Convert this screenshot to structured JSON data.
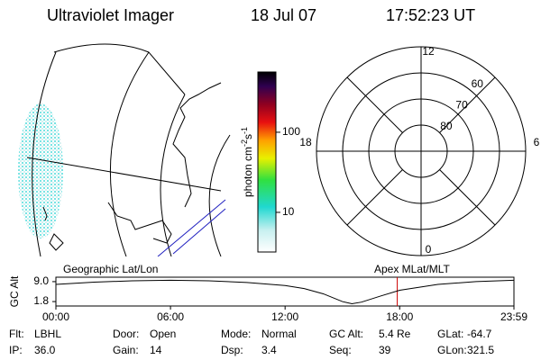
{
  "header": {
    "title": "Ultraviolet Imager",
    "date": "18 Jul 07",
    "time": "17:52:23 UT"
  },
  "colorbar": {
    "label": [
      "photon cm",
      "-2",
      "s",
      "-1"
    ],
    "log": true,
    "clim": [
      3.2,
      565
    ],
    "ticks": [
      10,
      100
    ]
  },
  "polar": {
    "mlt_labels": [
      {
        "value": 12,
        "label": "12"
      },
      {
        "value": 6,
        "label": "6"
      },
      {
        "value": 0,
        "label": "0"
      },
      {
        "value": 18,
        "label": "18"
      }
    ],
    "lat_rings": [
      80,
      70,
      60
    ],
    "lat_limit": 50
  },
  "timeline": {
    "left_label": "Geographic Lat/Lon",
    "right_label": "Apex MLat/MLT",
    "y_label": "GC Alt",
    "xlim": [
      0,
      23.983
    ],
    "ylim": [
      0.2,
      10.6
    ],
    "xticks": [
      {
        "value": 0,
        "label": "00:00"
      },
      {
        "value": 6,
        "label": "06:00"
      },
      {
        "value": 12,
        "label": "12:00"
      },
      {
        "value": 18,
        "label": "18:00"
      },
      {
        "value": 23.983,
        "label": "23:59"
      }
    ],
    "yticks": [
      {
        "value": 9,
        "label": "9.0"
      },
      {
        "value": 1.8,
        "label": "1.8"
      }
    ],
    "x": [
      0,
      2,
      4,
      6,
      8,
      10,
      12,
      13,
      14,
      15,
      15.5,
      16,
      17,
      18,
      20,
      22,
      23.983
    ],
    "values": [
      8.0,
      8.8,
      9.3,
      9.5,
      9.3,
      8.7,
      7.6,
      6.5,
      4.6,
      1.8,
      1.0,
      1.6,
      3.8,
      5.9,
      8.0,
      9.0,
      9.5
    ],
    "marker": 17.873,
    "marker_color": "#cc0000"
  },
  "info": [
    [
      [
        "Flt:",
        "LBHL"
      ],
      [
        "Door:",
        "Open"
      ],
      [
        "Mode:",
        "Normal"
      ],
      [
        "GC Alt:",
        "5.4 Re"
      ],
      [
        "GLat:",
        "-64.7"
      ]
    ],
    [
      [
        "IP:",
        "36.0"
      ],
      [
        "Gain:",
        "14"
      ],
      [
        "Dsp:",
        "3.4"
      ],
      [
        "Seq:",
        "39"
      ],
      [
        "GLon:",
        "321.5"
      ]
    ]
  ]
}
